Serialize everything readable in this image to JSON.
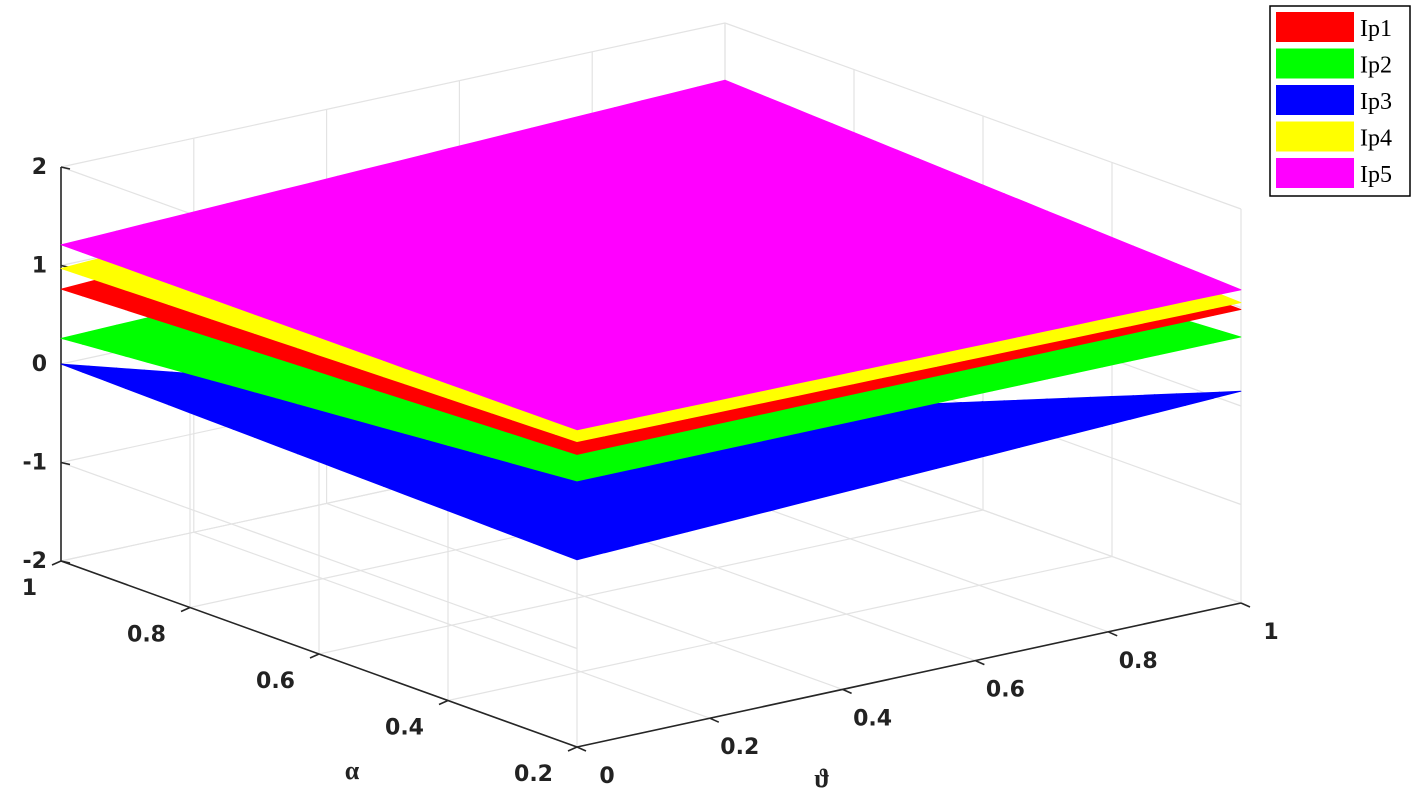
{
  "chart_data": {
    "type": "surface",
    "xlabel": "ϑ",
    "ylabel": "α",
    "zlabel": "",
    "xlim": [
      0,
      1
    ],
    "ylim": [
      0.2,
      1
    ],
    "zlim": [
      -2,
      2
    ],
    "x_ticks": [
      "0",
      "0.2",
      "0.4",
      "0.6",
      "0.8",
      "1"
    ],
    "y_ticks": [
      "0.2",
      "0.4",
      "0.6",
      "0.8",
      "1"
    ],
    "z_ticks": [
      "-2",
      "-1",
      "0",
      "1",
      "2"
    ],
    "grid": true,
    "legend_position": "top-right",
    "series": [
      {
        "name": "Ip1",
        "color": "#ff0000",
        "corners": {
          "t0_a1": 0.76,
          "t1_a1": 1.07,
          "t0_a02": 0.97,
          "t1_a02": 0.98
        }
      },
      {
        "name": "Ip2",
        "color": "#00ff00",
        "corners": {
          "t0_a1": 0.26,
          "t1_a1": 0.4,
          "t0_a02": 0.7,
          "t1_a02": 0.7
        }
      },
      {
        "name": "Ip3",
        "color": "#0000ff",
        "corners": {
          "t0_a1": 0.0,
          "t1_a1": -1.95,
          "t0_a02": -0.1,
          "t1_a02": 0.15
        }
      },
      {
        "name": "Ip4",
        "color": "#ffff00",
        "corners": {
          "t0_a1": 0.97,
          "t1_a1": 1.25,
          "t0_a02": 1.1,
          "t1_a02": 1.05
        }
      },
      {
        "name": "Ip5",
        "color": "#ff00ff",
        "corners": {
          "t0_a1": 1.21,
          "t1_a1": 1.42,
          "t0_a02": 1.22,
          "t1_a02": 1.18
        }
      }
    ]
  }
}
